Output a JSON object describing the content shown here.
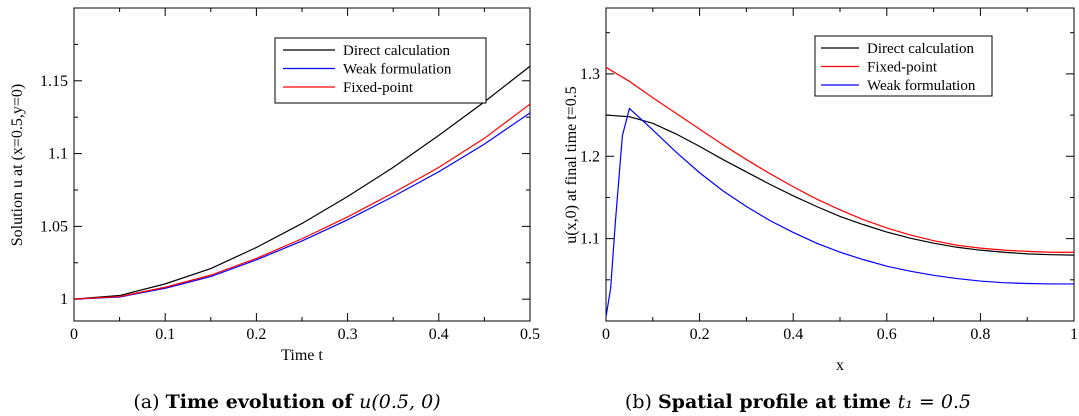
{
  "chart_data": [
    {
      "type": "line",
      "caption_prefix": "(a) ",
      "caption_bold": "Time evolution of ",
      "caption_math": "u(0.5, 0)",
      "xlabel": "Time t",
      "ylabel": "Solution u at (x=0.5,y=0)",
      "xlim": [
        0,
        0.5
      ],
      "ylim": [
        0.985,
        1.2
      ],
      "xticks": [
        0,
        0.1,
        0.2,
        0.3,
        0.4,
        0.5
      ],
      "xtick_labels": [
        "0",
        "0.1",
        "0.2",
        "0.3",
        "0.4",
        "0.5"
      ],
      "yticks": [
        1,
        1.05,
        1.1,
        1.15
      ],
      "ytick_labels": [
        "1",
        "1.05",
        "1.1",
        "1.15"
      ],
      "grid": false,
      "legend_position": "top-right",
      "series": [
        {
          "name": "Direct calculation",
          "color": "#000000",
          "x": [
            0,
            0.05,
            0.1,
            0.15,
            0.2,
            0.25,
            0.3,
            0.35,
            0.4,
            0.45,
            0.5
          ],
          "y": [
            1.0,
            1.0025,
            1.0105,
            1.021,
            1.0355,
            1.052,
            1.0705,
            1.0905,
            1.1125,
            1.1355,
            1.16
          ]
        },
        {
          "name": "Weak formulation",
          "color": "#0000ff",
          "x": [
            0,
            0.05,
            0.1,
            0.15,
            0.2,
            0.25,
            0.3,
            0.35,
            0.4,
            0.45,
            0.5
          ],
          "y": [
            1.0,
            1.0015,
            1.0075,
            1.0155,
            1.027,
            1.04,
            1.0545,
            1.0705,
            1.0875,
            1.1065,
            1.128
          ]
        },
        {
          "name": "Fixed-point",
          "color": "#ff0000",
          "x": [
            0,
            0.05,
            0.1,
            0.15,
            0.2,
            0.25,
            0.3,
            0.35,
            0.4,
            0.45,
            0.5
          ],
          "y": [
            1.0,
            1.0018,
            1.0082,
            1.0165,
            1.028,
            1.0415,
            1.0565,
            1.073,
            1.0905,
            1.1105,
            1.134
          ]
        }
      ]
    },
    {
      "type": "line",
      "caption_prefix": "(b) ",
      "caption_bold": "Spatial profile at time ",
      "caption_math": "t₁ = 0.5",
      "xlabel": "x",
      "ylabel": "u(x,0) at final time t=0.5",
      "xlim": [
        0,
        1
      ],
      "ylim": [
        1.0,
        1.38
      ],
      "xticks": [
        0,
        0.2,
        0.4,
        0.6,
        0.8,
        1
      ],
      "xtick_labels": [
        "0",
        "0.2",
        "0.4",
        "0.6",
        "0.8",
        "1"
      ],
      "yticks": [
        1.1,
        1.2,
        1.3
      ],
      "ytick_labels": [
        "1.1",
        "1.2",
        "1.3"
      ],
      "grid": false,
      "legend_position": "top-right",
      "series": [
        {
          "name": "Direct calculation",
          "color": "#000000",
          "x": [
            0,
            0.05,
            0.1,
            0.15,
            0.2,
            0.25,
            0.3,
            0.35,
            0.4,
            0.45,
            0.5,
            0.55,
            0.6,
            0.65,
            0.7,
            0.75,
            0.8,
            0.85,
            0.9,
            0.95,
            1.0
          ],
          "y": [
            1.25,
            1.248,
            1.24,
            1.227,
            1.212,
            1.196,
            1.181,
            1.166,
            1.152,
            1.139,
            1.127,
            1.117,
            1.108,
            1.1005,
            1.0945,
            1.0895,
            1.086,
            1.0835,
            1.0815,
            1.0805,
            1.08
          ]
        },
        {
          "name": "Fixed-point",
          "color": "#ff0000",
          "x": [
            0,
            0.05,
            0.1,
            0.15,
            0.2,
            0.25,
            0.3,
            0.35,
            0.4,
            0.45,
            0.5,
            0.55,
            0.6,
            0.65,
            0.7,
            0.75,
            0.8,
            0.85,
            0.9,
            0.95,
            1.0
          ],
          "y": [
            1.308,
            1.291,
            1.271,
            1.252,
            1.233,
            1.214,
            1.196,
            1.179,
            1.163,
            1.148,
            1.135,
            1.123,
            1.113,
            1.1045,
            1.0975,
            1.092,
            1.0885,
            1.086,
            1.0845,
            1.0835,
            1.0835
          ]
        },
        {
          "name": "Weak formulation",
          "color": "#0000ff",
          "x": [
            0,
            0.01,
            0.02,
            0.035,
            0.05,
            0.1,
            0.15,
            0.2,
            0.25,
            0.3,
            0.35,
            0.4,
            0.45,
            0.5,
            0.55,
            0.6,
            0.65,
            0.7,
            0.75,
            0.8,
            0.85,
            0.9,
            0.95,
            1.0
          ],
          "y": [
            1.005,
            1.04,
            1.12,
            1.225,
            1.258,
            1.232,
            1.205,
            1.18,
            1.158,
            1.139,
            1.122,
            1.1075,
            1.0945,
            1.0835,
            1.0745,
            1.0665,
            1.0605,
            1.0555,
            1.0515,
            1.0485,
            1.0465,
            1.0455,
            1.045,
            1.045
          ]
        }
      ]
    }
  ]
}
